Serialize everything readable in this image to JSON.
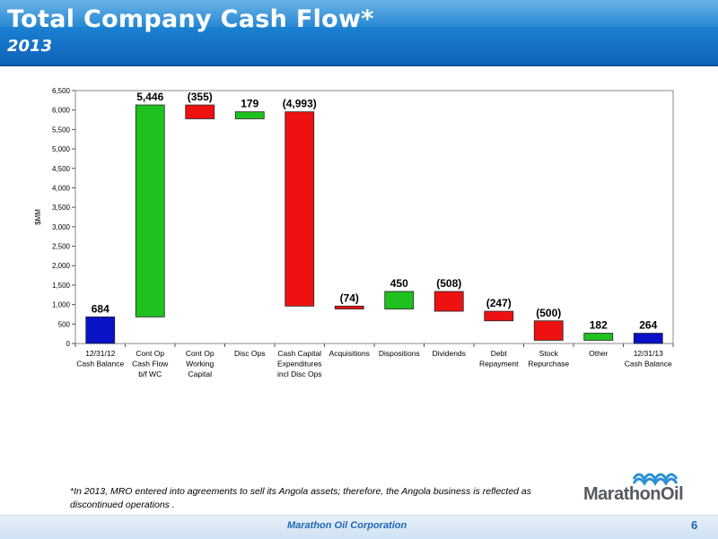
{
  "header": {
    "title": "Total Company Cash Flow*",
    "subtitle": "2013"
  },
  "chart_data": {
    "type": "bar",
    "subtype": "waterfall",
    "ylabel": "$MM",
    "ylim": [
      0,
      6500
    ],
    "yticks": [
      "0",
      "500",
      "1,000",
      "1,500",
      "2,000",
      "2,500",
      "3,000",
      "3,500",
      "4,000",
      "4,500",
      "5,000",
      "5,500",
      "6,000",
      "6,500"
    ],
    "ytick_values": [
      0,
      500,
      1000,
      1500,
      2000,
      2500,
      3000,
      3500,
      4000,
      4500,
      5000,
      5500,
      6000,
      6500
    ],
    "bars": [
      {
        "category": [
          "12/31/12",
          "Cash Balance"
        ],
        "start": 0,
        "end": 684,
        "label": "684",
        "color": "#0a12c8"
      },
      {
        "category": [
          "Cont Op",
          "Cash Flow",
          "b/f WC"
        ],
        "start": 684,
        "end": 6130,
        "label": "5,446",
        "color": "#1fc11f"
      },
      {
        "category": [
          "Cont Op",
          "Working",
          "Capital"
        ],
        "start": 6130,
        "end": 5775,
        "label": "(355)",
        "color": "#ee1111"
      },
      {
        "category": [
          "Disc Ops"
        ],
        "start": 5775,
        "end": 5954,
        "label": "179",
        "color": "#1fc11f"
      },
      {
        "category": [
          "Cash Capital",
          "Expenditures",
          "incl Disc Ops"
        ],
        "start": 5954,
        "end": 961,
        "label": "(4,993)",
        "color": "#ee1111"
      },
      {
        "category": [
          "Acquisitions"
        ],
        "start": 961,
        "end": 887,
        "label": "(74)",
        "color": "#ee1111"
      },
      {
        "category": [
          "Dispositions"
        ],
        "start": 887,
        "end": 1337,
        "label": "450",
        "color": "#1fc11f"
      },
      {
        "category": [
          "Dividends"
        ],
        "start": 1337,
        "end": 829,
        "label": "(508)",
        "color": "#ee1111"
      },
      {
        "category": [
          "Debt",
          "Repayment"
        ],
        "start": 829,
        "end": 582,
        "label": "(247)",
        "color": "#ee1111"
      },
      {
        "category": [
          "Stock",
          "Repurchase"
        ],
        "start": 582,
        "end": 82,
        "label": "(500)",
        "color": "#ee1111"
      },
      {
        "category": [
          "Other"
        ],
        "start": 82,
        "end": 264,
        "label": "182",
        "color": "#1fc11f"
      },
      {
        "category": [
          "12/31/13",
          "Cash Balance"
        ],
        "start": 0,
        "end": 264,
        "label": "264",
        "color": "#0a12c8"
      }
    ]
  },
  "footnote": "*In 2013, MRO entered into agreements to sell its Angola assets;  therefore, the Angola  business is reflected as discontinued operations .",
  "footer": {
    "company": "Marathon Oil Corporation",
    "page": "6"
  },
  "logo": {
    "text": "MarathonOil",
    "color": "#555a63",
    "icon_color": "#2a8fd6"
  }
}
